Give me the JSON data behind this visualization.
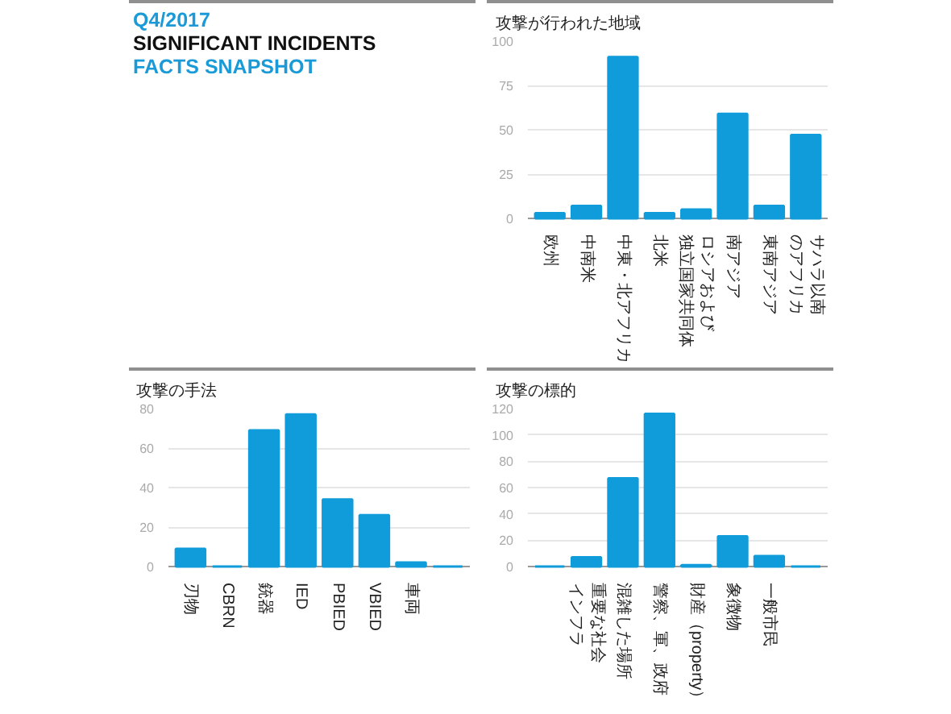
{
  "chart_data": [
    {
      "type": "other",
      "annotations": [
        "Q4/2017"
      ],
      "title": "SIGNIFICANT INCIDENTS",
      "subtitle": "FACTS SNAPSHOT"
    },
    {
      "type": "bar",
      "title": "攻撃が行われた地域",
      "categories": [
        "欧州",
        "中南米",
        "中東・北アフリカ",
        "北米",
        "ロシアおよび独立国家共同体",
        "南アジア",
        "東南アジア",
        "サハラ以南のアフリカ"
      ],
      "values": [
        3,
        7,
        91,
        3,
        5,
        59,
        7,
        47
      ],
      "color": "#109cda",
      "ylim": [
        0,
        100
      ],
      "yticks": [
        0,
        25,
        50,
        75,
        100
      ],
      "grid": "y"
    },
    {
      "type": "bar",
      "title": "攻撃の手法",
      "categories": [
        "刃物",
        "CBRN",
        "銃器",
        "IED",
        "PBIED",
        "VBIED",
        "車両",
        null
      ],
      "values": [
        9,
        0,
        69,
        77,
        34,
        26,
        2,
        0
      ],
      "color": "#109cda",
      "ylim": [
        0,
        80
      ],
      "yticks": [
        0,
        20,
        40,
        60,
        80
      ],
      "grid": "y"
    },
    {
      "type": "bar",
      "title": "攻撃の標的",
      "categories": [
        null,
        "重要な社会インフラ",
        "混雑した場所",
        "警察、軍、政府",
        "財産（property）",
        "象徴物",
        "一般市民",
        null
      ],
      "values": [
        0,
        7,
        67,
        116,
        1,
        23,
        8,
        0
      ],
      "color": "#109cda",
      "ylim": [
        0,
        120
      ],
      "yticks": [
        0,
        20,
        40,
        60,
        80,
        100,
        120
      ],
      "grid": "y"
    }
  ]
}
